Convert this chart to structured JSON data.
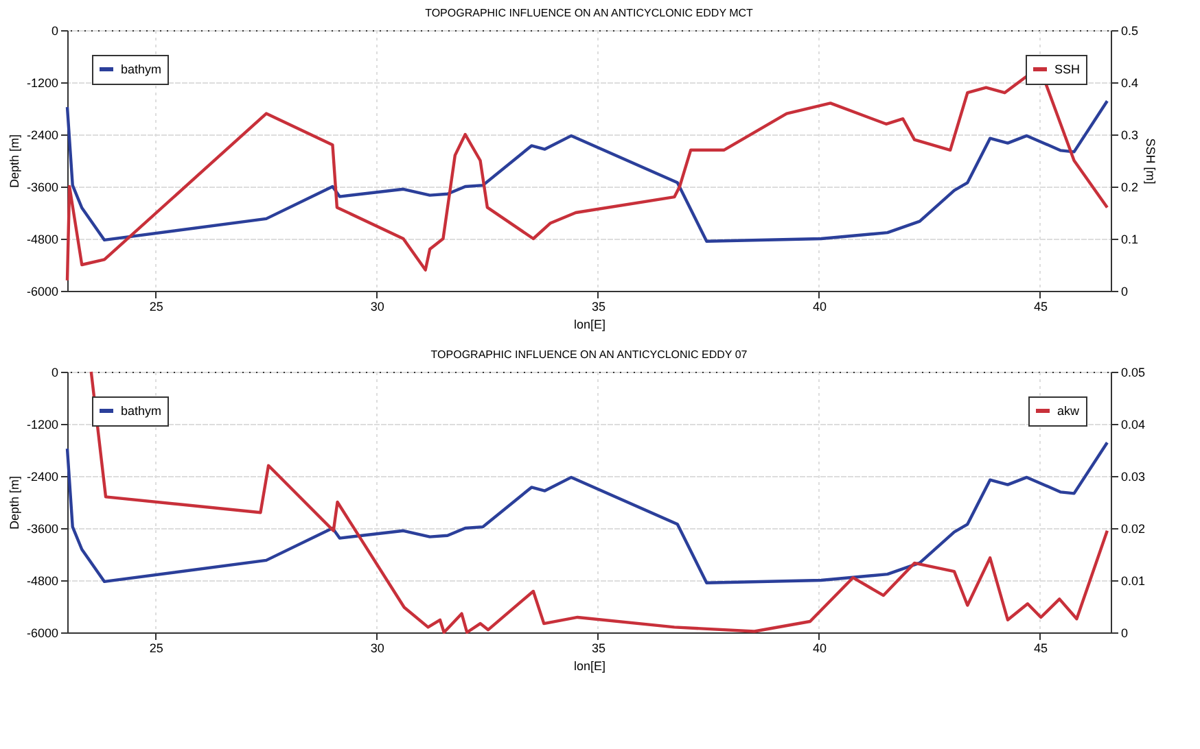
{
  "chart_data": [
    {
      "type": "line",
      "title": "TOPOGRAPHIC INFLUENCE ON AN ANTICYCLONIC EDDY MCT",
      "xlabel": "lon[E]",
      "ylabel": "Depth [m]",
      "y2label": "SSH [m]",
      "xlim": [
        23,
        46.6
      ],
      "xticks": [
        25,
        30,
        35,
        40,
        45
      ],
      "ylim": [
        -6000,
        0
      ],
      "yticks": [
        -6000,
        -4800,
        -3600,
        -2400,
        -1200,
        0
      ],
      "y2lim": [
        0,
        0.5
      ],
      "y2ticks": [
        0,
        0.1,
        0.2,
        0.3,
        0.4,
        0.5
      ],
      "grid": true,
      "legend": "top",
      "series": [
        {
          "name": "bathym",
          "color": "#2b3f9a",
          "x": [
            23.0,
            23.12,
            23.33,
            23.84,
            27.5,
            29.0,
            29.16,
            30.6,
            31.2,
            31.6,
            32.0,
            32.4,
            33.5,
            33.8,
            34.4,
            36.8,
            37.46,
            40.05,
            41.55,
            42.28,
            43.06,
            43.36,
            43.87,
            44.27,
            44.7,
            45.47,
            45.77,
            46.52
          ],
          "values": [
            -1770,
            -3570,
            -4090,
            -4830,
            -4340,
            -3600,
            -3830,
            -3660,
            -3800,
            -3770,
            -3600,
            -3570,
            -2660,
            -2740,
            -2430,
            -3510,
            -4860,
            -4800,
            -4660,
            -4400,
            -3690,
            -3510,
            -2490,
            -2600,
            -2430,
            -2770,
            -2800,
            -1630
          ]
        },
        {
          "name": "SSH",
          "color": "#c8303a",
          "axis": "y2",
          "x": [
            23.0,
            23.05,
            23.33,
            23.84,
            27.5,
            29.0,
            29.1,
            30.6,
            31.1,
            31.2,
            31.5,
            31.77,
            32.0,
            32.34,
            32.5,
            33.54,
            33.93,
            34.5,
            36.73,
            36.85,
            37.1,
            37.85,
            39.27,
            40.26,
            41.52,
            41.9,
            42.16,
            42.97,
            43.36,
            43.78,
            44.2,
            44.99,
            45.77,
            46.52
          ],
          "values": [
            0.02,
            0.2,
            0.05,
            0.06,
            0.34,
            0.28,
            0.16,
            0.1,
            0.04,
            0.08,
            0.1,
            0.26,
            0.3,
            0.25,
            0.16,
            0.1,
            0.13,
            0.15,
            0.18,
            0.2,
            0.27,
            0.27,
            0.34,
            0.36,
            0.32,
            0.33,
            0.29,
            0.27,
            0.38,
            0.39,
            0.38,
            0.43,
            0.25,
            0.16
          ]
        }
      ]
    },
    {
      "type": "line",
      "title": "TOPOGRAPHIC INFLUENCE ON AN ANTICYCLONIC EDDY 07",
      "xlabel": "lon[E]",
      "ylabel": "Depth [m]",
      "xlim": [
        23,
        46.6
      ],
      "xticks": [
        25,
        30,
        35,
        40,
        45
      ],
      "ylim": [
        -6000,
        0
      ],
      "yticks": [
        -6000,
        -4800,
        -3600,
        -2400,
        -1200,
        0
      ],
      "y2lim": [
        0,
        0.05
      ],
      "y2ticks": [
        0,
        0.01,
        0.02,
        0.03,
        0.04,
        0.05
      ],
      "grid": true,
      "legend": "top",
      "series": [
        {
          "name": "bathym",
          "color": "#2b3f9a",
          "x": [
            23.0,
            23.12,
            23.33,
            23.84,
            27.5,
            29.0,
            29.16,
            30.6,
            31.2,
            31.6,
            32.0,
            32.4,
            33.5,
            33.8,
            34.4,
            36.8,
            37.46,
            40.05,
            41.55,
            42.28,
            43.06,
            43.36,
            43.87,
            44.27,
            44.7,
            45.47,
            45.77,
            46.52
          ],
          "values": [
            -1770,
            -3570,
            -4090,
            -4830,
            -4340,
            -3600,
            -3830,
            -3660,
            -3800,
            -3770,
            -3600,
            -3570,
            -2660,
            -2740,
            -2430,
            -3510,
            -4860,
            -4800,
            -4660,
            -4400,
            -3690,
            -3510,
            -2490,
            -2600,
            -2430,
            -2770,
            -2800,
            -1630
          ]
        },
        {
          "name": "akw",
          "color": "#c8303a",
          "axis": "y2",
          "x": [
            23.54,
            23.87,
            27.37,
            27.55,
            29.02,
            29.11,
            30.62,
            31.16,
            31.43,
            31.52,
            31.92,
            32.04,
            32.34,
            32.52,
            33.54,
            33.78,
            34.54,
            36.73,
            38.54,
            39.8,
            40.77,
            41.46,
            42.16,
            43.06,
            43.36,
            43.87,
            44.27,
            44.72,
            45.02,
            45.44,
            45.83,
            46.52
          ],
          "values": [
            0.05,
            0.026,
            0.023,
            0.032,
            0.0195,
            0.025,
            0.0048,
            0.001,
            0.0024,
            0.0,
            0.0036,
            0.0,
            0.0017,
            0.0005,
            0.0079,
            0.0017,
            0.0029,
            0.001,
            0.0002,
            0.0021,
            0.0105,
            0.0071,
            0.0133,
            0.0117,
            0.0052,
            0.0143,
            0.0024,
            0.0055,
            0.0029,
            0.0064,
            0.0026,
            0.0195
          ]
        }
      ]
    }
  ]
}
